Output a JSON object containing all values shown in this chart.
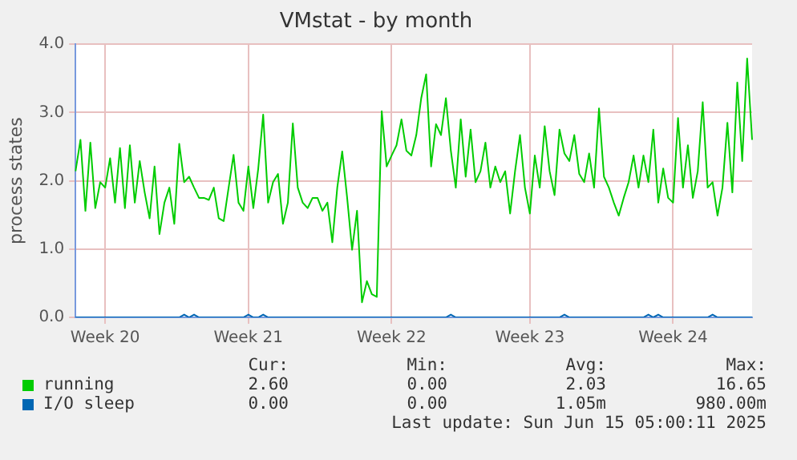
{
  "chart_data": {
    "type": "line",
    "title": "VMstat - by month",
    "ylabel": "process states",
    "categories": [
      null,
      null,
      null,
      null,
      null,
      null,
      "Week 20",
      null,
      null,
      null,
      null,
      null,
      null,
      null,
      null,
      null,
      null,
      null,
      null,
      null,
      null,
      null,
      null,
      null,
      null,
      null,
      null,
      null,
      null,
      null,
      null,
      null,
      null,
      null,
      null,
      "Week 21",
      null,
      null,
      null,
      null,
      null,
      null,
      null,
      null,
      null,
      null,
      null,
      null,
      null,
      null,
      null,
      null,
      null,
      null,
      null,
      null,
      null,
      null,
      null,
      null,
      null,
      null,
      null,
      null,
      "Week 22",
      null,
      null,
      null,
      null,
      null,
      null,
      null,
      null,
      null,
      null,
      null,
      null,
      null,
      null,
      null,
      null,
      null,
      null,
      null,
      null,
      null,
      null,
      null,
      null,
      null,
      null,
      null,
      "Week 23",
      null,
      null,
      null,
      null,
      null,
      null,
      null,
      null,
      null,
      null,
      null,
      null,
      null,
      null,
      null,
      null,
      null,
      null,
      null,
      null,
      null,
      null,
      null,
      null,
      null,
      null,
      null,
      null,
      "Week 24",
      null,
      null,
      null,
      null,
      null,
      null,
      null,
      null,
      null,
      null,
      null,
      null,
      null,
      null,
      null,
      null
    ],
    "ylim": [
      0,
      4
    ],
    "yticks": [
      {
        "value": 0,
        "label": "0.0"
      },
      {
        "value": 1,
        "label": "1.0"
      },
      {
        "value": 2,
        "label": "2.0"
      },
      {
        "value": 3,
        "label": "3.0"
      },
      {
        "value": 4,
        "label": "4.0"
      }
    ],
    "grid": true,
    "legend": "bottom",
    "marker": "none",
    "line_style": "solid",
    "series": [
      {
        "name": "running",
        "color": "#00cc00",
        "values": [
          2.14,
          2.6,
          1.56,
          2.56,
          1.6,
          1.98,
          1.9,
          2.33,
          1.68,
          2.48,
          1.6,
          2.52,
          1.68,
          2.29,
          1.83,
          1.45,
          2.21,
          1.22,
          1.68,
          1.9,
          1.37,
          2.54,
          1.98,
          2.06,
          1.9,
          1.75,
          1.75,
          1.72,
          1.9,
          1.45,
          1.41,
          1.9,
          2.38,
          1.68,
          1.56,
          2.21,
          1.6,
          2.18,
          2.97,
          1.68,
          1.98,
          2.1,
          1.37,
          1.68,
          2.84,
          1.9,
          1.68,
          1.6,
          1.75,
          1.75,
          1.56,
          1.68,
          1.1,
          1.9,
          2.43,
          1.75,
          0.99,
          1.56,
          0.22,
          0.53,
          0.34,
          0.3,
          3.02,
          2.21,
          2.37,
          2.52,
          2.9,
          2.44,
          2.37,
          2.67,
          3.21,
          3.56,
          2.21,
          2.83,
          2.67,
          3.21,
          2.44,
          1.9,
          2.9,
          2.06,
          2.75,
          1.98,
          2.14,
          2.56,
          1.9,
          2.21,
          1.98,
          2.14,
          1.52,
          2.14,
          2.67,
          1.9,
          1.52,
          2.37,
          1.9,
          2.8,
          2.14,
          1.79,
          2.75,
          2.4,
          2.29,
          2.67,
          2.1,
          1.98,
          2.4,
          1.9,
          3.06,
          2.06,
          1.9,
          1.68,
          1.49,
          1.75,
          1.98,
          2.37,
          1.9,
          2.37,
          1.98,
          2.75,
          1.68,
          2.18,
          1.75,
          1.68,
          2.92,
          1.9,
          2.52,
          1.75,
          2.14,
          3.15,
          1.9,
          1.98,
          1.49,
          1.9,
          2.85,
          1.83,
          3.44,
          2.29,
          3.79,
          2.6
        ]
      },
      {
        "name": "I/O sleep",
        "color": "#0066b3",
        "values": [
          0,
          0,
          0,
          0,
          0,
          0,
          0,
          0,
          0,
          0,
          0,
          0,
          0,
          0,
          0,
          0,
          0,
          0,
          0,
          0,
          0,
          0,
          0.04,
          0,
          0.04,
          0,
          0,
          0,
          0,
          0,
          0,
          0,
          0,
          0,
          0,
          0.04,
          0,
          0,
          0.04,
          0,
          0,
          0,
          0,
          0,
          0,
          0,
          0,
          0,
          0,
          0,
          0,
          0,
          0,
          0,
          0,
          0,
          0,
          0,
          0,
          0,
          0,
          0,
          0,
          0,
          0,
          0,
          0,
          0,
          0,
          0,
          0,
          0,
          0,
          0,
          0,
          0,
          0.04,
          0,
          0,
          0,
          0,
          0,
          0,
          0,
          0,
          0,
          0,
          0,
          0,
          0,
          0,
          0,
          0,
          0,
          0,
          0,
          0,
          0,
          0,
          0.04,
          0,
          0,
          0,
          0,
          0,
          0,
          0,
          0,
          0,
          0,
          0,
          0,
          0,
          0,
          0,
          0,
          0.04,
          0,
          0.04,
          0,
          0,
          0,
          0,
          0,
          0,
          0,
          0,
          0,
          0,
          0.04,
          0,
          0,
          0,
          0,
          0,
          0,
          0,
          0
        ]
      }
    ],
    "annotations": [
      "Cur:",
      "Min:",
      "Avg:",
      "Max:",
      "2.60",
      "0.00",
      "2.03",
      "16.65",
      "0.00",
      "0.00",
      "1.05m",
      "980.00m",
      "Last update: Sun Jun 15 05:00:11 2025"
    ]
  }
}
